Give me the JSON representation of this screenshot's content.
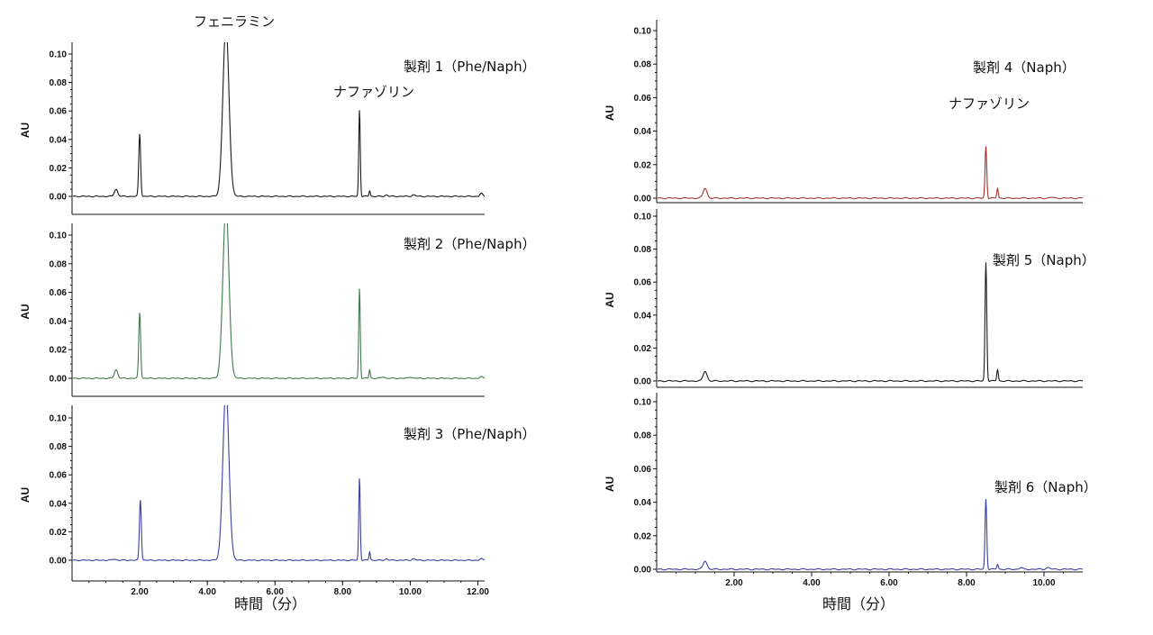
{
  "colors": {
    "black": "#1a1a1a",
    "green": "#3e7a4b",
    "blue": "#3b3f9e",
    "red": "#a1362f",
    "axis": "#111111"
  },
  "chart_data": [
    {
      "type": "line",
      "panel": "left-1",
      "color_key": "black",
      "xlim": [
        0,
        12.2
      ],
      "ylim": [
        -0.012,
        0.11
      ],
      "xticks": [],
      "yticks": [
        "0.00",
        "0.02",
        "0.04",
        "0.06",
        "0.08",
        "0.10"
      ],
      "ylabel": "AU",
      "xlabel": "",
      "annotations": [
        {
          "text": "フェニラミン",
          "role": "peak-label"
        },
        {
          "text": "ナファゾリン",
          "role": "peak-label"
        },
        {
          "text": "製剤 1（Phe/Naph）",
          "role": "sample-label"
        }
      ],
      "peaks": [
        {
          "x": 1.3,
          "y": 0.005,
          "w": 0.05
        },
        {
          "x": 2.0,
          "y": 0.044,
          "w": 0.028
        },
        {
          "x": 4.55,
          "y": 0.12,
          "w": 0.09
        },
        {
          "x": 8.5,
          "y": 0.061,
          "w": 0.022
        },
        {
          "x": 8.8,
          "y": 0.004,
          "w": 0.02
        },
        {
          "x": 9.3,
          "y": 0.001,
          "w": 0.04
        },
        {
          "x": 10.1,
          "y": 0.001,
          "w": 0.05
        },
        {
          "x": 12.1,
          "y": 0.002,
          "w": 0.04
        }
      ]
    },
    {
      "type": "line",
      "panel": "left-2",
      "color_key": "green",
      "xlim": [
        0,
        12.2
      ],
      "ylim": [
        -0.012,
        0.11
      ],
      "xticks": [],
      "yticks": [
        "0.00",
        "0.02",
        "0.04",
        "0.06",
        "0.08",
        "0.10"
      ],
      "ylabel": "AU",
      "xlabel": "",
      "annotations": [
        {
          "text": "製剤 2（Phe/Naph）",
          "role": "sample-label"
        }
      ],
      "peaks": [
        {
          "x": 1.3,
          "y": 0.006,
          "w": 0.05
        },
        {
          "x": 2.0,
          "y": 0.046,
          "w": 0.028
        },
        {
          "x": 4.55,
          "y": 0.12,
          "w": 0.09
        },
        {
          "x": 8.5,
          "y": 0.063,
          "w": 0.022
        },
        {
          "x": 8.8,
          "y": 0.006,
          "w": 0.02
        },
        {
          "x": 9.2,
          "y": 0.001,
          "w": 0.05
        },
        {
          "x": 10.0,
          "y": 0.001,
          "w": 0.05
        },
        {
          "x": 12.1,
          "y": 0.001,
          "w": 0.04
        }
      ]
    },
    {
      "type": "line",
      "panel": "left-3",
      "color_key": "blue",
      "xlim": [
        0,
        12.2
      ],
      "ylim": [
        -0.002,
        0.11
      ],
      "xticks": [
        "2.00",
        "4.00",
        "6.00",
        "8.00",
        "10.00",
        "12.00"
      ],
      "yticks": [
        "0.00",
        "0.02",
        "0.04",
        "0.06",
        "0.08",
        "0.10"
      ],
      "ylabel": "AU",
      "xlabel": "時間（分）",
      "annotations": [
        {
          "text": "製剤 3（Phe/Naph）",
          "role": "sample-label"
        }
      ],
      "peaks": [
        {
          "x": 1.25,
          "y": 0.0008,
          "w": 0.05
        },
        {
          "x": 2.02,
          "y": 0.043,
          "w": 0.028
        },
        {
          "x": 4.55,
          "y": 0.12,
          "w": 0.09
        },
        {
          "x": 8.5,
          "y": 0.058,
          "w": 0.022
        },
        {
          "x": 8.8,
          "y": 0.006,
          "w": 0.02
        },
        {
          "x": 9.3,
          "y": 0.001,
          "w": 0.04
        },
        {
          "x": 10.1,
          "y": 0.001,
          "w": 0.05
        },
        {
          "x": 12.1,
          "y": 0.001,
          "w": 0.04
        }
      ]
    },
    {
      "type": "line",
      "panel": "right-1",
      "color_key": "red",
      "xlim": [
        0,
        11.0
      ],
      "ylim": [
        -0.002,
        0.1
      ],
      "xticks": [],
      "yticks": [
        "0.00",
        "0.02",
        "0.04",
        "0.06",
        "0.08",
        "0.10"
      ],
      "ylabel": "AU",
      "xlabel": "",
      "annotations": [
        {
          "text": "製剤 4（Naph）",
          "role": "sample-label"
        },
        {
          "text": "ナファゾリン",
          "role": "peak-label"
        }
      ],
      "peaks": [
        {
          "x": 1.25,
          "y": 0.006,
          "w": 0.05
        },
        {
          "x": 8.5,
          "y": 0.031,
          "w": 0.022
        },
        {
          "x": 8.8,
          "y": 0.006,
          "w": 0.02
        },
        {
          "x": 10.2,
          "y": 0.0005,
          "w": 0.05
        }
      ]
    },
    {
      "type": "line",
      "panel": "right-2",
      "color_key": "black",
      "xlim": [
        0,
        11.0
      ],
      "ylim": [
        -0.002,
        0.1
      ],
      "xticks": [],
      "yticks": [
        "0.00",
        "0.02",
        "0.04",
        "0.06",
        "0.08",
        "0.10"
      ],
      "ylabel": "AU",
      "xlabel": "",
      "annotations": [
        {
          "text": "製剤 5（Naph）",
          "role": "sample-label"
        }
      ],
      "peaks": [
        {
          "x": 1.25,
          "y": 0.006,
          "w": 0.05
        },
        {
          "x": 8.5,
          "y": 0.072,
          "w": 0.022
        },
        {
          "x": 8.8,
          "y": 0.007,
          "w": 0.02
        }
      ]
    },
    {
      "type": "line",
      "panel": "right-3",
      "color_key": "blue",
      "xlim": [
        0,
        11.0
      ],
      "ylim": [
        -0.002,
        0.1
      ],
      "xticks": [
        "2.00",
        "4.00",
        "6.00",
        "8.00",
        "10.00"
      ],
      "yticks": [
        "0.00",
        "0.02",
        "0.04",
        "0.06",
        "0.08",
        "0.10"
      ],
      "ylabel": "AU",
      "xlabel": "時間（分）",
      "annotations": [
        {
          "text": "製剤 6（Naph）",
          "role": "sample-label"
        }
      ],
      "peaks": [
        {
          "x": 1.25,
          "y": 0.005,
          "w": 0.05
        },
        {
          "x": 8.5,
          "y": 0.042,
          "w": 0.022
        },
        {
          "x": 8.8,
          "y": 0.003,
          "w": 0.02
        },
        {
          "x": 9.4,
          "y": 0.001,
          "w": 0.04
        },
        {
          "x": 10.1,
          "y": 0.001,
          "w": 0.05
        }
      ]
    }
  ]
}
